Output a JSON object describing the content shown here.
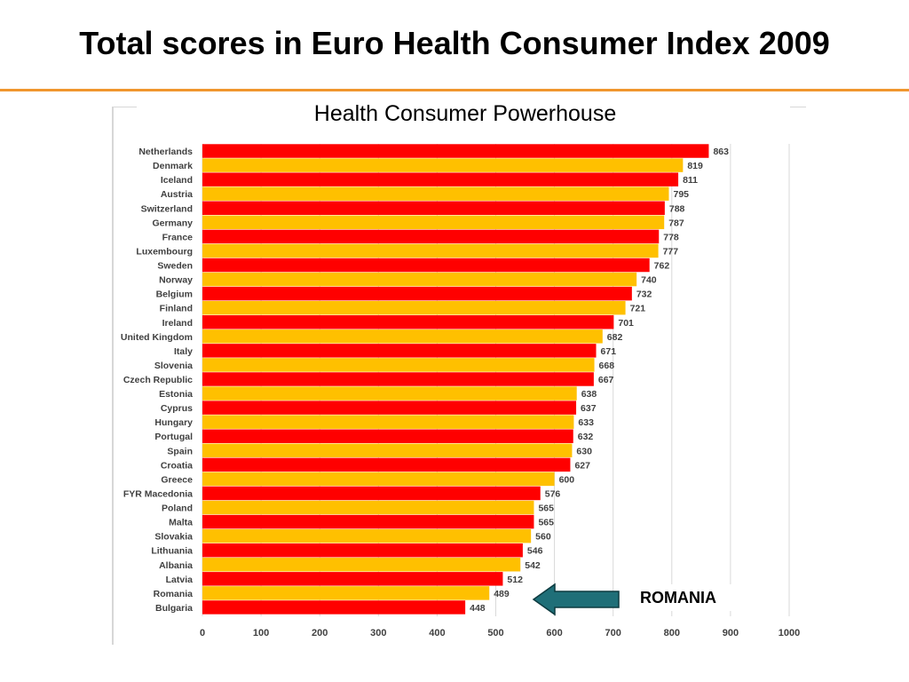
{
  "slide": {
    "title": "Total scores in Euro Health Consumer Index 2009",
    "accent_color": "#F0962E"
  },
  "callout": {
    "label": "ROMANIA",
    "arrow_color": "#1F6F78",
    "icon": "left-arrow-icon"
  },
  "chart_data": {
    "type": "bar",
    "orientation": "horizontal",
    "subtitle": "Health Consumer Powerhouse",
    "categories": [
      "Netherlands",
      "Denmark",
      "Iceland",
      "Austria",
      "Switzerland",
      "Germany",
      "France",
      "Luxembourg",
      "Sweden",
      "Norway",
      "Belgium",
      "Finland",
      "Ireland",
      "United Kingdom",
      "Italy",
      "Slovenia",
      "Czech Republic",
      "Estonia",
      "Cyprus",
      "Hungary",
      "Portugal",
      "Spain",
      "Croatia",
      "Greece",
      "FYR Macedonia",
      "Poland",
      "Malta",
      "Slovakia",
      "Lithuania",
      "Albania",
      "Latvia",
      "Romania",
      "Bulgaria"
    ],
    "values": [
      863,
      819,
      811,
      795,
      788,
      787,
      778,
      777,
      762,
      740,
      732,
      721,
      701,
      682,
      671,
      668,
      667,
      638,
      637,
      633,
      632,
      630,
      627,
      600,
      576,
      565,
      565,
      560,
      546,
      542,
      512,
      489,
      448
    ],
    "xlim": [
      0,
      1000
    ],
    "xticks": [
      0,
      100,
      200,
      300,
      400,
      500,
      600,
      700,
      800,
      900,
      1000
    ],
    "grid": "vertical",
    "legend": "none",
    "bar_colors": [
      "#FF0000",
      "#FFC000"
    ],
    "gridline_color": "#D9D9D9"
  }
}
